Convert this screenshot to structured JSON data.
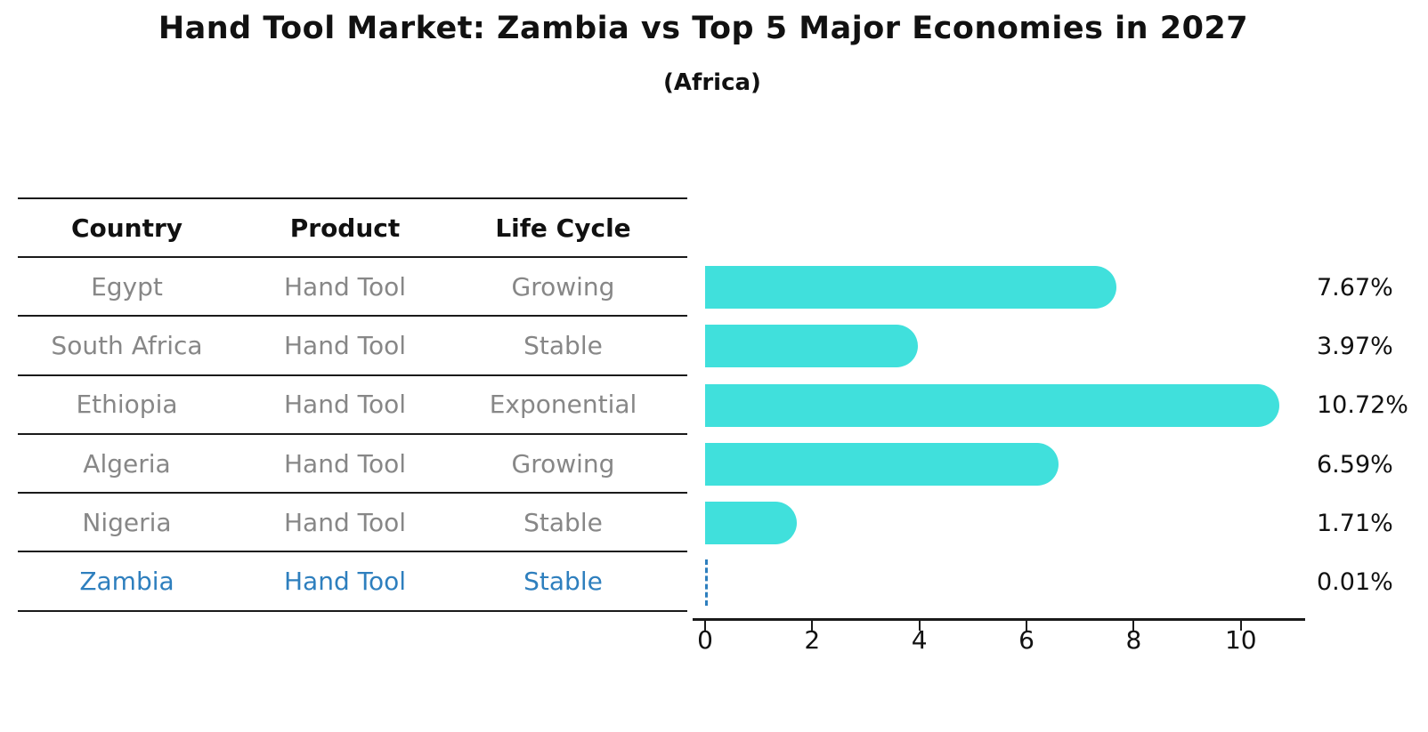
{
  "title": "Hand Tool Market: Zambia vs Top 5 Major Economies in 2027",
  "subtitle": "(Africa)",
  "table": {
    "headers": [
      "Country",
      "Product",
      "Life Cycle"
    ],
    "rows": [
      {
        "country": "Egypt",
        "product": "Hand Tool",
        "life_cycle": "Growing",
        "highlight": false
      },
      {
        "country": "South Africa",
        "product": "Hand Tool",
        "life_cycle": "Stable",
        "highlight": false
      },
      {
        "country": "Ethiopia",
        "product": "Hand Tool",
        "life_cycle": "Exponential",
        "highlight": false
      },
      {
        "country": "Algeria",
        "product": "Hand Tool",
        "life_cycle": "Growing",
        "highlight": false
      },
      {
        "country": "Nigeria",
        "product": "Hand Tool",
        "life_cycle": "Stable",
        "highlight": true
      }
    ]
  },
  "chart_data": {
    "type": "bar",
    "orientation": "horizontal",
    "title": "Hand Tool Market: Zambia vs Top 5 Major Economies in 2027",
    "subtitle": "(Africa)",
    "categories": [
      "Egypt",
      "South Africa",
      "Ethiopia",
      "Algeria",
      "Nigeria",
      "Zambia"
    ],
    "values": [
      7.67,
      3.97,
      10.72,
      6.59,
      1.71,
      0.01
    ],
    "value_labels": [
      "7.67%",
      "3.97%",
      "10.72%",
      "6.59%",
      "1.71%",
      "0.01%"
    ],
    "x_ticks": [
      "0",
      "2",
      "4",
      "6",
      "8",
      "10"
    ],
    "x_tick_values": [
      0,
      2,
      4,
      6,
      8,
      10
    ],
    "xlim": [
      0,
      11.2
    ],
    "grid": false,
    "legend": "none",
    "bar_color": "#40e0dc",
    "highlight_color": "#2e7fbe",
    "highlight_index": 5,
    "highlight_style": "dashed-outline-zero-width-bar"
  },
  "colors": {
    "bar": "#40e0dc",
    "highlight_blue": "#2e7fbe",
    "table_text_gray": "#878787",
    "line_black": "#1a1a1a"
  }
}
